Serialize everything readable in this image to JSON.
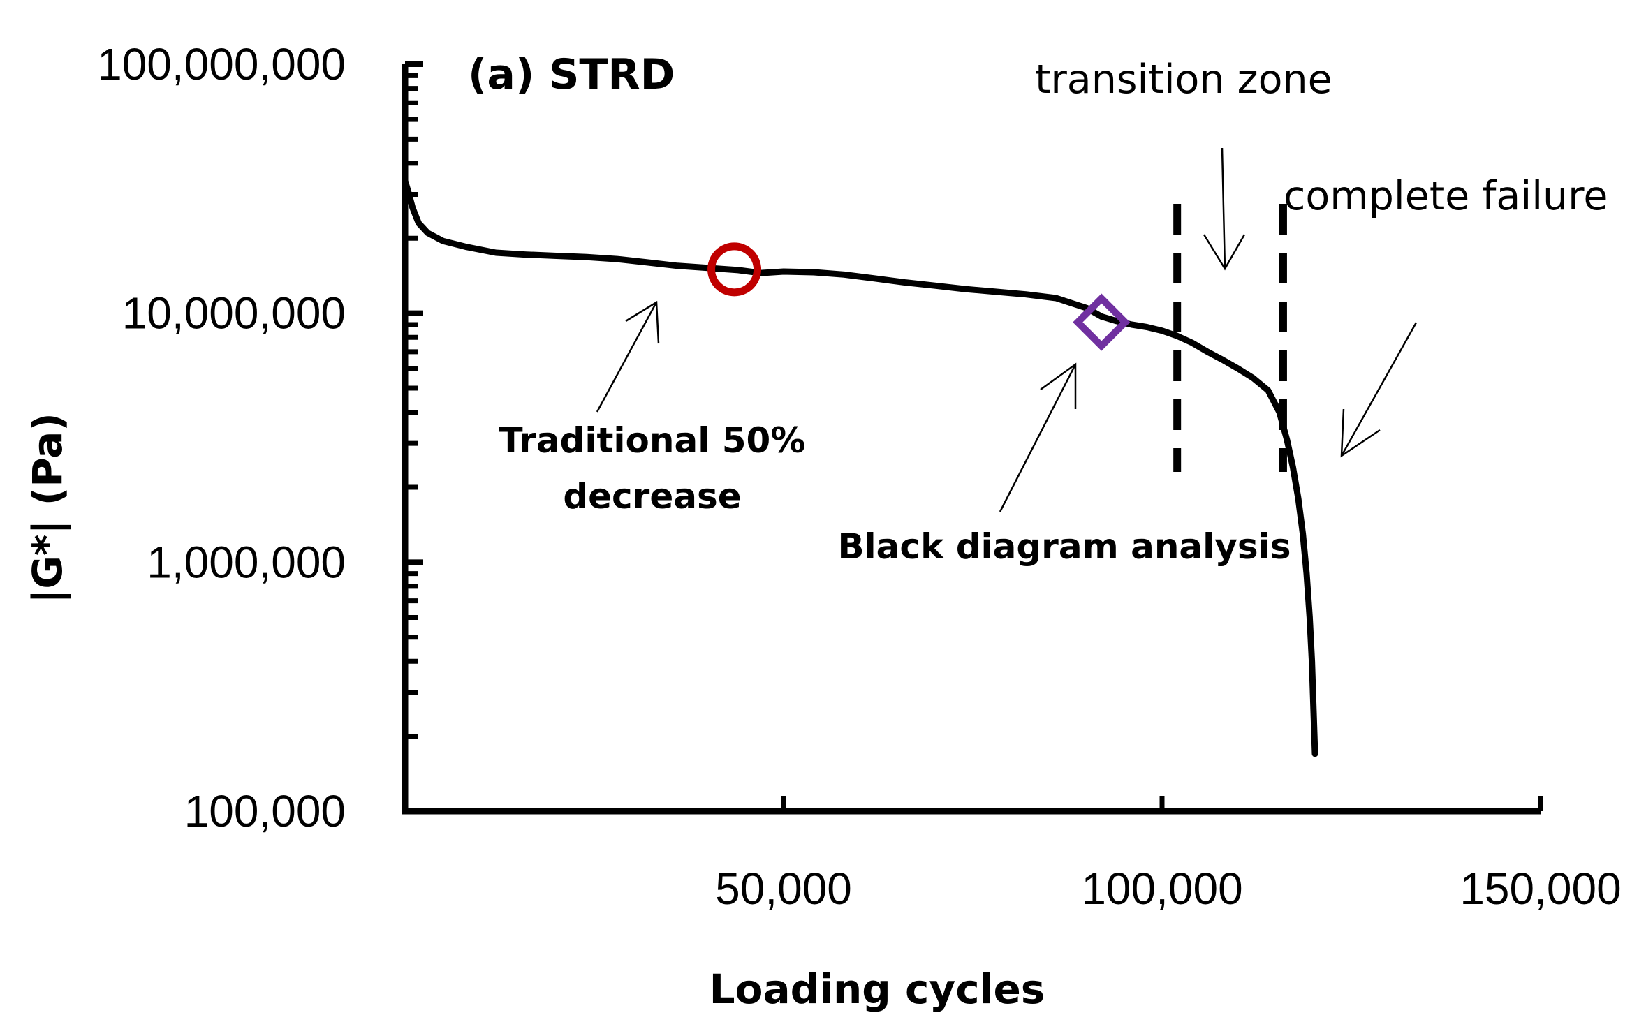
{
  "chart_data": {
    "type": "line",
    "title": "(a) STRD",
    "xlabel": "Loading cycles",
    "ylabel": "|G*| (Pa)",
    "xlim": [
      0,
      150000
    ],
    "ylim": [
      100000,
      100000000
    ],
    "yscale": "log",
    "x_ticks": [
      50000,
      100000,
      150000
    ],
    "x_tick_labels": [
      "50,000",
      "100,000",
      "150,000"
    ],
    "y_ticks": [
      100000,
      1000000,
      10000000,
      100000000
    ],
    "y_tick_labels": [
      "100,000",
      "1,000,000",
      "10,000,000",
      "100,000,000"
    ],
    "series": [
      {
        "name": "|G*|",
        "color": "#000000",
        "x": [
          0,
          400,
          1000,
          1800,
          3000,
          5000,
          8000,
          12000,
          16000,
          20000,
          24000,
          28000,
          32000,
          36000,
          40000,
          44000,
          47000,
          50000,
          54000,
          58000,
          62000,
          66000,
          70000,
          74000,
          78000,
          82000,
          86000,
          90000,
          92000,
          94000,
          96000,
          98000,
          100000,
          102000,
          104000,
          106000,
          108000,
          110000,
          112000,
          114000,
          115500,
          116500,
          117300,
          118000,
          118600,
          119100,
          119500,
          119800,
          120000,
          120200
        ],
        "y": [
          34000000,
          31000000,
          26500000,
          23000000,
          21000000,
          19500000,
          18500000,
          17500000,
          17200000,
          17000000,
          16800000,
          16500000,
          16000000,
          15500000,
          15200000,
          14900000,
          14500000,
          14700000,
          14600000,
          14300000,
          13800000,
          13300000,
          12900000,
          12500000,
          12200000,
          11900000,
          11500000,
          10500000,
          9700000,
          9300000,
          9000000,
          8800000,
          8500000,
          8100000,
          7600000,
          7000000,
          6500000,
          6000000,
          5500000,
          4900000,
          4000000,
          3100000,
          2400000,
          1800000,
          1300000,
          900000,
          600000,
          400000,
          260000,
          170000
        ]
      }
    ],
    "markers": [
      {
        "name": "Traditional 50% decrease",
        "shape": "circle",
        "color": "#c00000",
        "x": 43500,
        "y": 15000000
      },
      {
        "name": "Black diagram analysis",
        "shape": "diamond",
        "color": "#7030a0",
        "x": 92000,
        "y": 9200000
      }
    ],
    "vertical_lines": [
      {
        "x": 102000,
        "style": "dashed"
      },
      {
        "x": 116000,
        "style": "dashed"
      }
    ],
    "annotations": {
      "traditional_line1": "Traditional 50%",
      "traditional_line2": "decrease",
      "black_diagram": "Black diagram analysis",
      "transition_zone": "transition zone",
      "complete_failure": "complete failure"
    },
    "grid": false
  }
}
